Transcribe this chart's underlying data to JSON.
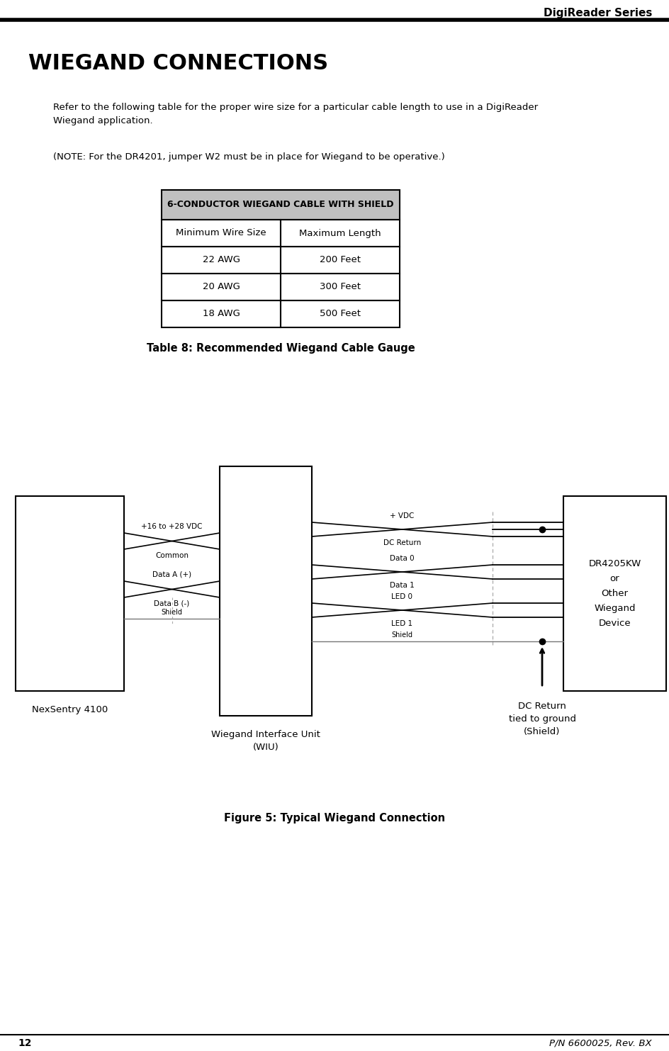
{
  "page_title": "DigiReader Series",
  "page_number": "12",
  "footer_right": "P/N 6600025, Rev. BX",
  "section_title": "WIEGAND CONNECTIONS",
  "para1": "Refer to the following table for the proper wire size for a particular cable length to use in a DigiReader\nWiegand application.",
  "para2": "(NOTE: For the DR4201, jumper W2 must be in place for Wiegand to be operative.)",
  "table_header": "6-CONDUCTOR WIEGAND CABLE WITH SHIELD",
  "table_col1_header": "Minimum Wire Size",
  "table_col2_header": "Maximum Length",
  "table_rows": [
    [
      "22 AWG",
      "200 Feet"
    ],
    [
      "20 AWG",
      "300 Feet"
    ],
    [
      "18 AWG",
      "500 Feet"
    ]
  ],
  "table_caption": "Table 8: Recommended Wiegand Cable Gauge",
  "fig_caption": "Figure 5: Typical Wiegand Connection",
  "fig_label_nexsentry": "NexSentry 4100",
  "fig_label_wiu": "Wiegand Interface Unit\n(WIU)",
  "fig_label_dcreturn": "DC Return\ntied to ground\n(Shield)",
  "fig_label_dr": "DR4205KW\nor\nOther\nWiegand\nDevice",
  "wiu_left_labels": [
    "+16 to +28 VDC",
    "Common",
    "Data A (+)",
    "Data B (-)",
    "Shield"
  ],
  "wiu_right_labels": [
    "+ VDC",
    "DC Return",
    "Data 0",
    "Data 1",
    "LED 0",
    "LED 1",
    "Shield"
  ],
  "header_bg": "#000000",
  "table_header_bg": "#c0c0c0",
  "table_border": "#000000",
  "body_bg": "#ffffff",
  "text_color": "#000000"
}
